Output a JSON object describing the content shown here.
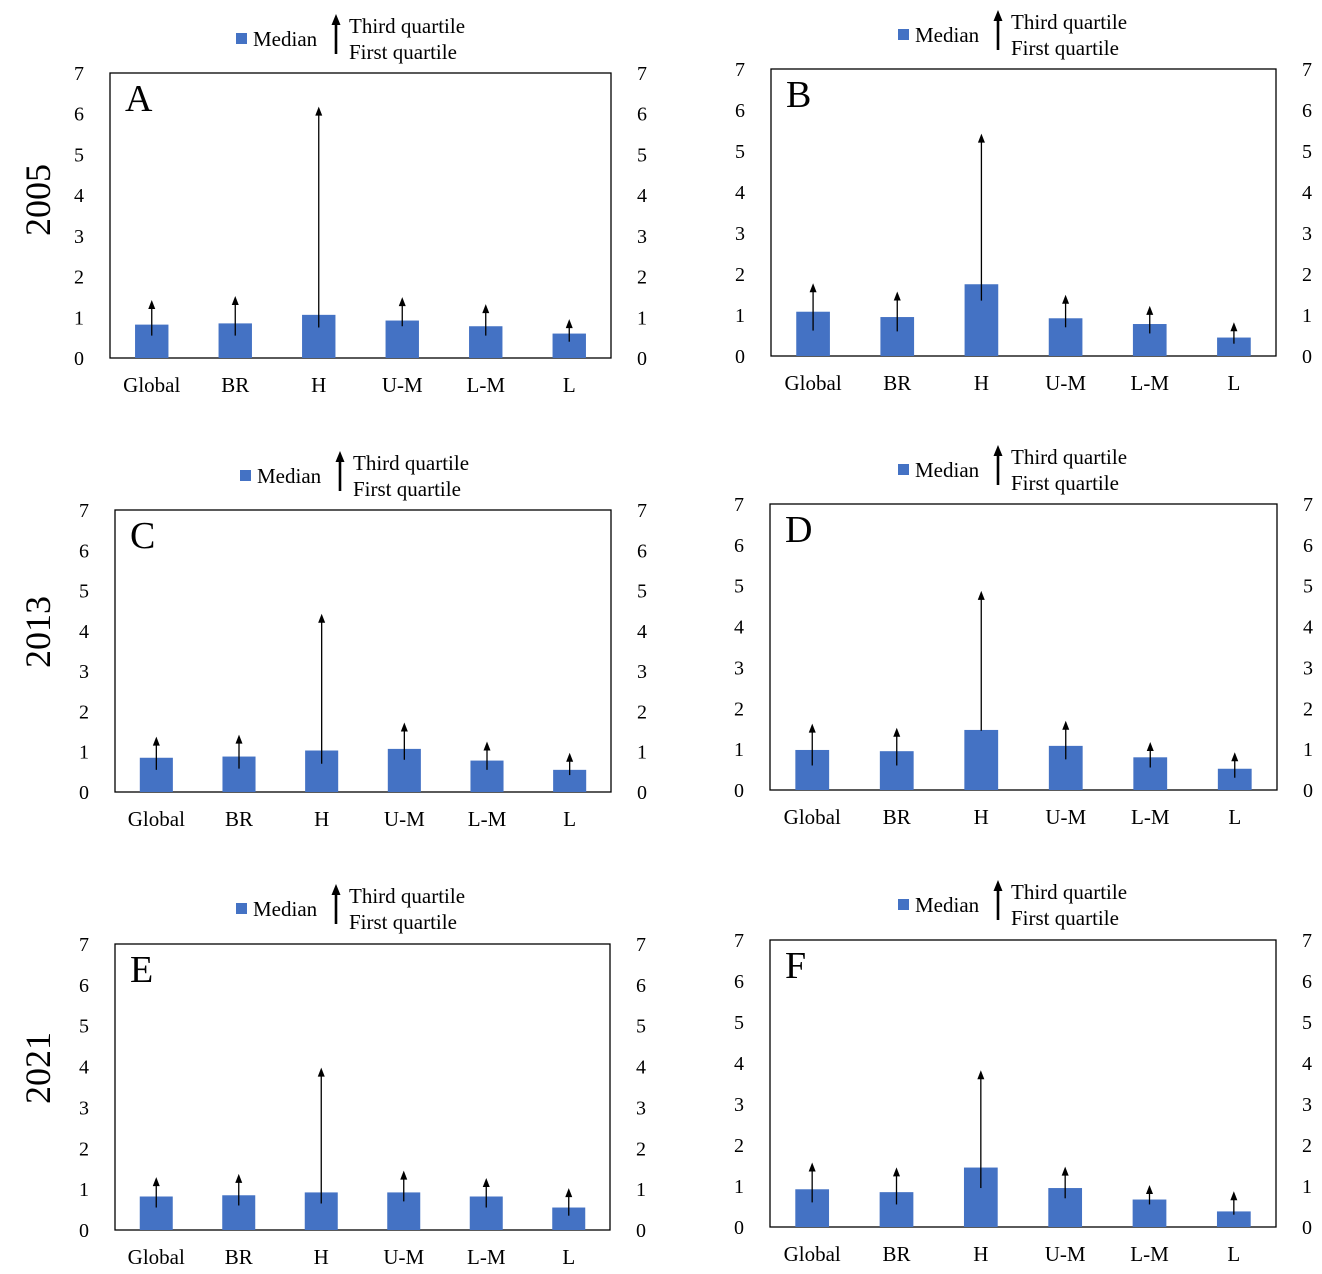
{
  "colors": {
    "bar": "#4472C4",
    "axis": "#000000",
    "background": "#ffffff"
  },
  "legend": {
    "median": "Median",
    "third_quartile": "Third quartile",
    "first_quartile": "First quartile"
  },
  "years": [
    "2005",
    "2013",
    "2021"
  ],
  "chart_data": [
    {
      "type": "bar",
      "title": "A",
      "year": "2005",
      "categories": [
        "Global",
        "BR",
        "H",
        "U-M",
        "L-M",
        "L"
      ],
      "series": [
        {
          "name": "Median",
          "values": [
            0.82,
            0.85,
            1.06,
            0.92,
            0.78,
            0.6
          ]
        },
        {
          "name": "First quartile",
          "values": [
            0.55,
            0.55,
            0.75,
            0.78,
            0.55,
            0.4
          ]
        },
        {
          "name": "Third quartile",
          "values": [
            1.35,
            1.45,
            6.1,
            1.42,
            1.25,
            0.88
          ]
        }
      ],
      "ylim": [
        0,
        7
      ],
      "yticks": [
        0,
        1,
        2,
        3,
        4,
        5,
        6,
        7
      ]
    },
    {
      "type": "bar",
      "title": "B",
      "year": "2005",
      "categories": [
        "Global",
        "BR",
        "H",
        "U-M",
        "L-M",
        "L"
      ],
      "series": [
        {
          "name": "Median",
          "values": [
            1.08,
            0.95,
            1.75,
            0.92,
            0.78,
            0.45
          ]
        },
        {
          "name": "First quartile",
          "values": [
            0.62,
            0.6,
            1.35,
            0.7,
            0.55,
            0.3
          ]
        },
        {
          "name": "Third quartile",
          "values": [
            1.7,
            1.5,
            5.35,
            1.42,
            1.15,
            0.75
          ]
        }
      ],
      "ylim": [
        0,
        7
      ],
      "yticks": [
        0,
        1,
        2,
        3,
        4,
        5,
        6,
        7
      ]
    },
    {
      "type": "bar",
      "title": "C",
      "year": "2013",
      "categories": [
        "Global",
        "BR",
        "H",
        "U-M",
        "L-M",
        "L"
      ],
      "series": [
        {
          "name": "Median",
          "values": [
            0.85,
            0.88,
            1.03,
            1.07,
            0.78,
            0.55
          ]
        },
        {
          "name": "First quartile",
          "values": [
            0.55,
            0.58,
            0.7,
            0.8,
            0.55,
            0.42
          ]
        },
        {
          "name": "Third quartile",
          "values": [
            1.3,
            1.35,
            4.35,
            1.65,
            1.18,
            0.9
          ]
        }
      ],
      "ylim": [
        0,
        7
      ],
      "yticks": [
        0,
        1,
        2,
        3,
        4,
        5,
        6,
        7
      ]
    },
    {
      "type": "bar",
      "title": "D",
      "year": "2013",
      "categories": [
        "Global",
        "BR",
        "H",
        "U-M",
        "L-M",
        "L"
      ],
      "series": [
        {
          "name": "Median",
          "values": [
            0.98,
            0.95,
            1.47,
            1.08,
            0.8,
            0.52
          ]
        },
        {
          "name": "First quartile",
          "values": [
            0.6,
            0.6,
            1.45,
            0.75,
            0.55,
            0.3
          ]
        },
        {
          "name": "Third quartile",
          "values": [
            1.55,
            1.45,
            4.8,
            1.62,
            1.1,
            0.85
          ]
        }
      ],
      "ylim": [
        0,
        7
      ],
      "yticks": [
        0,
        1,
        2,
        3,
        4,
        5,
        6,
        7
      ]
    },
    {
      "type": "bar",
      "title": "E",
      "year": "2021",
      "categories": [
        "Global",
        "BR",
        "H",
        "U-M",
        "L-M",
        "L"
      ],
      "series": [
        {
          "name": "Median",
          "values": [
            0.82,
            0.85,
            0.92,
            0.92,
            0.82,
            0.55
          ]
        },
        {
          "name": "First quartile",
          "values": [
            0.55,
            0.6,
            0.65,
            0.7,
            0.55,
            0.35
          ]
        },
        {
          "name": "Third quartile",
          "values": [
            1.22,
            1.3,
            3.9,
            1.38,
            1.2,
            0.95
          ]
        }
      ],
      "ylim": [
        0,
        7
      ],
      "yticks": [
        0,
        1,
        2,
        3,
        4,
        5,
        6,
        7
      ]
    },
    {
      "type": "bar",
      "title": "F",
      "year": "2021",
      "categories": [
        "Global",
        "BR",
        "H",
        "U-M",
        "L-M",
        "L"
      ],
      "series": [
        {
          "name": "Median",
          "values": [
            0.92,
            0.85,
            1.45,
            0.95,
            0.67,
            0.38
          ]
        },
        {
          "name": "First quartile",
          "values": [
            0.6,
            0.55,
            0.95,
            0.7,
            0.55,
            0.3
          ]
        },
        {
          "name": "Third quartile",
          "values": [
            1.5,
            1.38,
            3.75,
            1.4,
            0.95,
            0.8
          ]
        }
      ],
      "ylim": [
        0,
        7
      ],
      "yticks": [
        0,
        1,
        2,
        3,
        4,
        5,
        6,
        7
      ]
    }
  ]
}
